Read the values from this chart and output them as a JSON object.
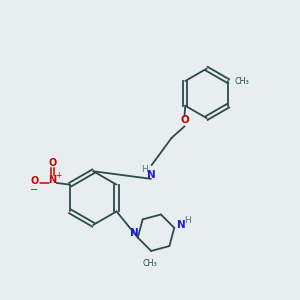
{
  "background_color": "#e8edf0",
  "bond_color": "#2d4a4a",
  "atom_colors": {
    "N": "#1a1aee",
    "O": "#cc0000",
    "H": "#4a7a7a",
    "C": "#2d4a4a"
  },
  "figsize": [
    3.0,
    3.0
  ],
  "dpi": 100
}
